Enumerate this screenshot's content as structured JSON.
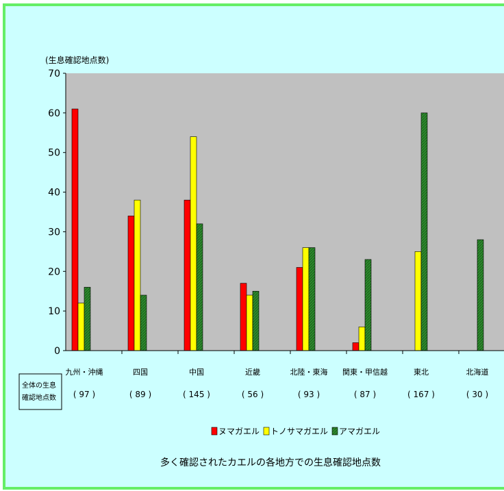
{
  "chart_data": {
    "type": "bar",
    "ylabel": "(生息確認地点数)",
    "ylim": [
      0,
      70
    ],
    "yticks": [
      0,
      10,
      20,
      30,
      40,
      50,
      60,
      70
    ],
    "categories": [
      "九州・沖縄",
      "四国",
      "中国",
      "近畿",
      "北陸・東海",
      "関東・甲信越",
      "東北",
      "北海道"
    ],
    "totals_label": [
      "全体の生息",
      "確認地点数"
    ],
    "totals": [
      "( 97 )",
      "( 89 )",
      "( 145 )",
      "( 56 )",
      "( 93 )",
      "( 87 )",
      "( 167 )",
      "( 30 )"
    ],
    "series": [
      {
        "name": "ヌマガエル",
        "color": "#ff0000",
        "values": [
          61,
          34,
          38,
          17,
          21,
          2,
          0,
          0
        ]
      },
      {
        "name": "トノサマガエル",
        "color": "#ffff00",
        "values": [
          12,
          38,
          54,
          14,
          26,
          6,
          25,
          0
        ]
      },
      {
        "name": "アマガエル",
        "color": "#2e8b2e",
        "values": [
          16,
          14,
          32,
          15,
          26,
          23,
          60,
          28
        ]
      }
    ],
    "plot_background": "#c0c0c0",
    "title": "多く確認されたカエルの各地方での生息確認地点数",
    "legend": "bottom"
  }
}
